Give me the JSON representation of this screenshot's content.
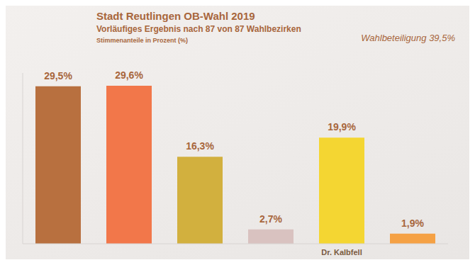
{
  "chart_data": {
    "type": "bar",
    "title": "Stadt Reutlingen OB-Wahl 2019",
    "subtitle": "Vorläufiges Ergebnis nach 87 von 87 Wahlbezirken",
    "y_label": "Stimmenanteile in Prozent (%)",
    "annotations": [
      "Wahlbeteiligung 39,5%"
    ],
    "categories": [
      null,
      null,
      null,
      null,
      "Dr. Kalbfell",
      null
    ],
    "values": [
      29.5,
      29.6,
      16.3,
      2.7,
      19.9,
      1.9
    ],
    "value_labels": [
      "29,5%",
      "29,6%",
      "16,3%",
      "2,7%",
      "19,9%",
      "1,9%"
    ],
    "colors": [
      "#b8703f",
      "#f2774a",
      "#d2b03e",
      "#d9c2c0",
      "#f4d632",
      "#f5a144"
    ],
    "ylim": [
      0,
      32
    ],
    "yticks": [],
    "data_labels": true,
    "tick_labels": "x",
    "grid": false
  }
}
